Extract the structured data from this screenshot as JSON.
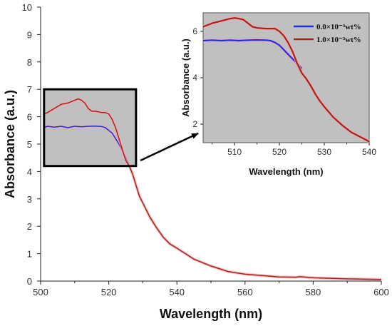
{
  "chart_data": [
    {
      "type": "line",
      "xlabel": "Wavelength (nm)",
      "ylabel": "Absorbance (a.u.)",
      "xlim": [
        500,
        600
      ],
      "ylim": [
        0,
        10
      ],
      "xticks": [
        "500",
        "520",
        "540",
        "560",
        "580",
        "600"
      ],
      "yticks": [
        "0",
        "1",
        "2",
        "3",
        "4",
        "5",
        "6",
        "7",
        "8",
        "9",
        "10"
      ],
      "series": [
        {
          "name": "0.0×10⁻³wt%",
          "color": "#1f2fe0",
          "x": [
            501,
            502,
            504,
            506,
            508,
            510,
            512,
            514,
            516,
            518,
            519,
            520,
            521,
            522,
            523,
            524,
            525,
            526
          ],
          "y": [
            5.6,
            5.65,
            5.62,
            5.65,
            5.6,
            5.65,
            5.63,
            5.65,
            5.66,
            5.64,
            5.6,
            5.5,
            5.4,
            5.2,
            5.0,
            4.75,
            4.5,
            4.2
          ]
        },
        {
          "name": "1.0×10⁻³wt%",
          "color": "#a52418",
          "x": [
            501,
            502,
            504,
            506,
            508,
            510,
            511,
            512,
            513,
            514,
            515,
            516,
            518,
            519,
            520,
            521,
            522,
            523,
            524,
            525,
            526,
            527,
            528,
            529,
            530,
            532,
            534,
            536,
            538,
            540,
            545,
            550,
            555,
            560,
            565,
            570,
            575,
            576,
            580,
            590,
            600
          ],
          "y": [
            6.1,
            6.15,
            6.3,
            6.45,
            6.5,
            6.6,
            6.65,
            6.6,
            6.5,
            6.3,
            6.2,
            6.2,
            6.15,
            6.15,
            6.1,
            5.9,
            5.6,
            5.2,
            4.8,
            4.4,
            4.2,
            3.9,
            3.5,
            3.1,
            2.85,
            2.35,
            1.95,
            1.6,
            1.35,
            1.2,
            0.8,
            0.55,
            0.35,
            0.25,
            0.2,
            0.15,
            0.14,
            0.16,
            0.12,
            0.08,
            0.06
          ]
        }
      ],
      "zoom_box": {
        "xlim": [
          501,
          528
        ],
        "ylim": [
          4.2,
          7.0
        ]
      }
    },
    {
      "type": "line",
      "xlabel": "Wavelength (nm)",
      "ylabel": "Absorbance (a.u.)",
      "xlim": [
        503,
        540
      ],
      "ylim": [
        1.2,
        6.8
      ],
      "xticks": [
        "510",
        "520",
        "530",
        "540"
      ],
      "yticks": [
        "2",
        "4",
        "6"
      ],
      "legend": "top-right",
      "series": [
        {
          "name": "0.0×10⁻³wt%",
          "color": "#1f2fe0",
          "x": [
            503,
            505,
            507,
            509,
            511,
            513,
            515,
            517,
            518,
            519,
            520,
            521,
            522,
            523,
            524,
            525
          ],
          "y": [
            5.6,
            5.62,
            5.6,
            5.62,
            5.6,
            5.62,
            5.63,
            5.62,
            5.6,
            5.52,
            5.4,
            5.2,
            5.0,
            4.8,
            4.6,
            4.4
          ]
        },
        {
          "name": "1.0×10⁻³wt%",
          "color": "#a52418",
          "x": [
            503,
            505,
            507,
            509,
            510,
            511,
            512,
            513,
            514,
            515,
            517,
            519,
            520,
            521,
            522,
            523,
            524,
            525,
            526,
            527,
            528,
            529,
            530,
            532,
            534,
            536,
            538,
            540
          ],
          "y": [
            6.2,
            6.35,
            6.45,
            6.55,
            6.58,
            6.55,
            6.5,
            6.35,
            6.2,
            6.15,
            6.12,
            6.12,
            6.0,
            5.8,
            5.5,
            5.1,
            4.6,
            4.2,
            3.95,
            3.65,
            3.3,
            3.0,
            2.75,
            2.3,
            1.95,
            1.65,
            1.45,
            1.25
          ]
        }
      ]
    }
  ]
}
